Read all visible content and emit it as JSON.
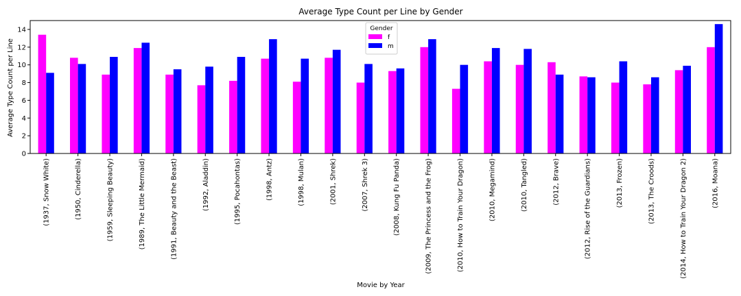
{
  "chart_data": {
    "type": "bar",
    "title": "Average Type Count per Line by Gender",
    "xlabel": "Movie by Year",
    "ylabel": "Average Type Count per Line",
    "ylim": [
      0,
      15
    ],
    "yticks": [
      0,
      2,
      4,
      6,
      8,
      10,
      12,
      14
    ],
    "grid": false,
    "legend": {
      "title": "Gender",
      "placement": "top-center"
    },
    "categories": [
      "(1937, Snow White)",
      "(1950, Cinderella)",
      "(1959, Sleeping Beauty)",
      "(1989, The Little Mermaid)",
      "(1991, Beauty and the Beast)",
      "(1992, Aladdin)",
      "(1995, Pocahontas)",
      "(1998, Antz)",
      "(1998, Mulan)",
      "(2001, Shrek)",
      "(2007, Shrek 3)",
      "(2008, Kung Fu Panda)",
      "(2009, The Princess and the Frog)",
      "(2010, How to Train Your Dragon)",
      "(2010, Megamind)",
      "(2010, Tangled)",
      "(2012, Brave)",
      "(2012, Rise of the Guardians)",
      "(2013, Frozen)",
      "(2013, The Croods)",
      "(2014, How to Train Your Dragon 2)",
      "(2016, Moana)"
    ],
    "series": [
      {
        "name": "f",
        "color": "#ff00ff",
        "values": [
          13.4,
          10.8,
          8.9,
          11.9,
          8.9,
          7.7,
          8.2,
          10.7,
          8.1,
          10.8,
          8.0,
          9.3,
          12.0,
          7.3,
          10.4,
          10.0,
          10.3,
          8.7,
          8.0,
          7.8,
          9.4,
          12.0
        ]
      },
      {
        "name": "m",
        "color": "#0000ff",
        "values": [
          9.1,
          10.1,
          10.9,
          12.5,
          9.5,
          9.8,
          10.9,
          12.9,
          10.7,
          11.7,
          10.1,
          9.6,
          12.9,
          10.0,
          11.9,
          11.8,
          8.9,
          8.6,
          10.4,
          8.6,
          9.9,
          14.6
        ]
      }
    ]
  }
}
